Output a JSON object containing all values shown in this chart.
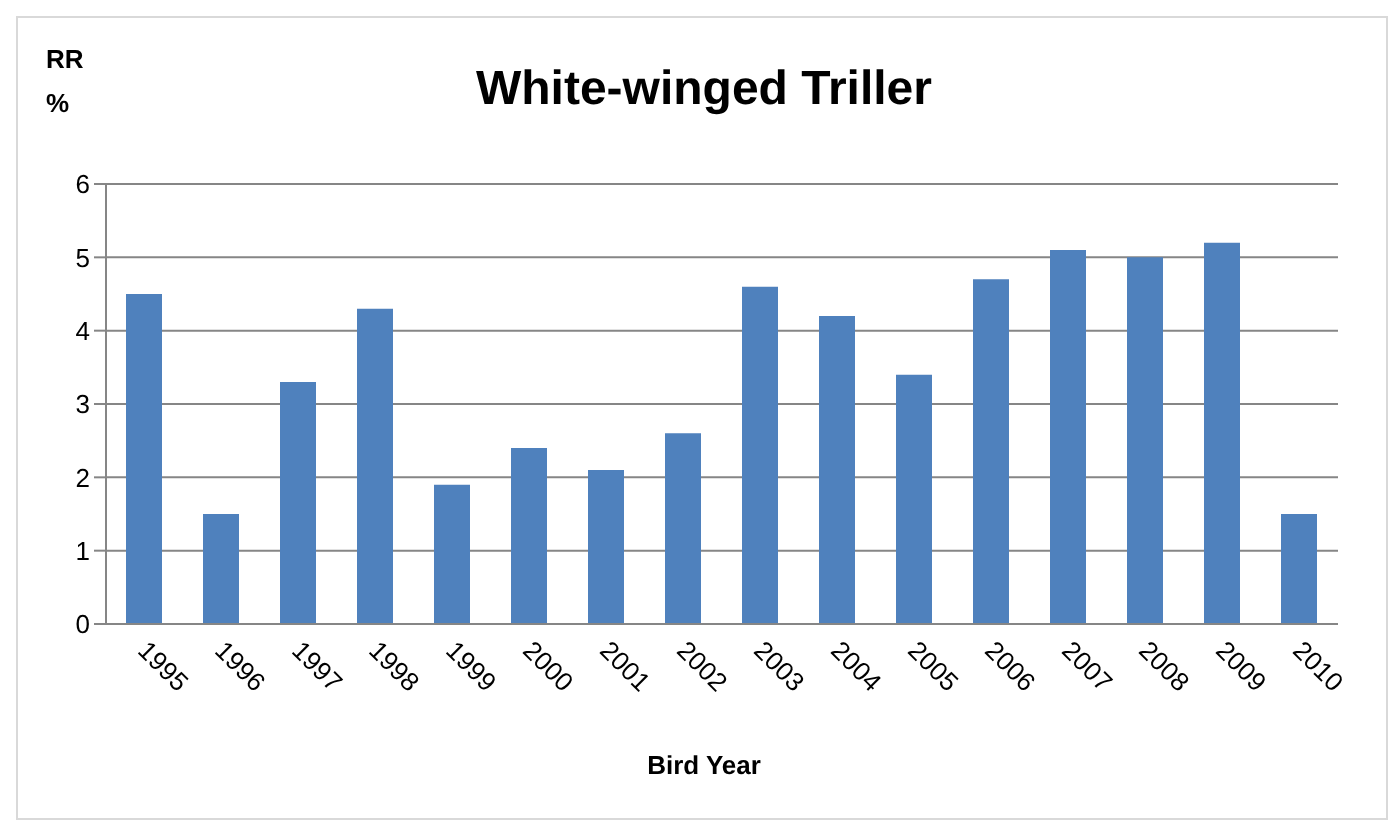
{
  "chart_data": {
    "type": "bar",
    "title": "White-winged Triller",
    "ylabel": "RR %",
    "xlabel": "Bird Year",
    "categories": [
      "1995",
      "1996",
      "1997",
      "1998",
      "1999",
      "2000",
      "2001",
      "2002",
      "2003",
      "2004",
      "2005",
      "2006",
      "2007",
      "2008",
      "2009",
      "2010"
    ],
    "values": [
      4.5,
      1.5,
      3.3,
      4.3,
      1.9,
      2.4,
      2.1,
      2.6,
      4.6,
      4.2,
      3.4,
      4.7,
      5.1,
      5.0,
      5.2,
      1.5
    ],
    "color": "#4f81bd",
    "ylim": [
      0,
      6
    ],
    "yticks": [
      0,
      1,
      2,
      3,
      4,
      5,
      6
    ],
    "grid": "y",
    "legend": false
  }
}
